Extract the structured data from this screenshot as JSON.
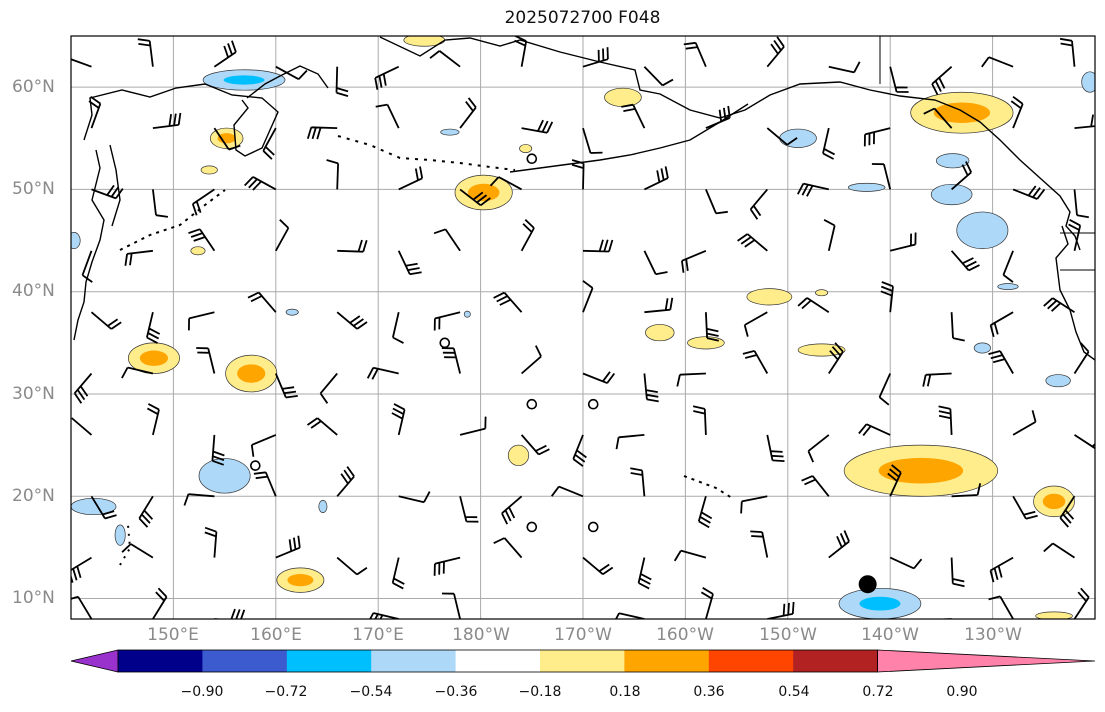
{
  "title": "2025072700 F048",
  "lat_labels": [
    "60°N",
    "50°N",
    "40°N",
    "30°N",
    "20°N",
    "10°N"
  ],
  "lon_labels": [
    "150°E",
    "160°E",
    "170°E",
    "180°W",
    "170°W",
    "160°W",
    "150°W",
    "140°W",
    "130°W"
  ],
  "colorbar": {
    "tick_labels": [
      "−0.90",
      "−0.72",
      "−0.54",
      "−0.36",
      "−0.18",
      "0.18",
      "0.36",
      "0.54",
      "0.72",
      "0.90"
    ],
    "colors": [
      "#9932cc",
      "#00008b",
      "#3b5bcf",
      "#00bfff",
      "#add8f8",
      "#ffffff",
      "#ffec8b",
      "#ffa500",
      "#ff4500",
      "#b22222",
      "#ff82ab"
    ]
  },
  "map": {
    "extent": {
      "lon_min": 140,
      "lon_max": 240,
      "lat_min": 8,
      "lat_max": 65
    },
    "gridlines": {
      "lons": [
        150,
        160,
        170,
        180,
        190,
        200,
        210,
        220,
        230
      ],
      "lats": [
        10,
        20,
        30,
        40,
        50,
        60
      ]
    },
    "positive_areas": [
      {
        "lon": 155.2,
        "lat": 55.0,
        "rx": 1.6,
        "ry": 1.0,
        "level": 0.36
      },
      {
        "lon": 153.5,
        "lat": 51.9,
        "rx": 0.8,
        "ry": 0.4,
        "level": 0.18
      },
      {
        "lon": 152.4,
        "lat": 44.0,
        "rx": 0.7,
        "ry": 0.4,
        "level": 0.18
      },
      {
        "lon": 174.5,
        "lat": 64.6,
        "rx": 2.0,
        "ry": 0.6,
        "level": 0.18
      },
      {
        "lon": 180.3,
        "lat": 49.7,
        "rx": 2.8,
        "ry": 1.7,
        "level": 0.36
      },
      {
        "lon": 184.4,
        "lat": 54.0,
        "rx": 0.6,
        "ry": 0.4,
        "level": 0.18
      },
      {
        "lon": 193.9,
        "lat": 59.0,
        "rx": 1.8,
        "ry": 0.9,
        "level": 0.18
      },
      {
        "lon": 227.0,
        "lat": 57.5,
        "rx": 5.0,
        "ry": 2.0,
        "level": 0.36
      },
      {
        "lon": 148.1,
        "lat": 33.5,
        "rx": 2.5,
        "ry": 1.5,
        "level": 0.36
      },
      {
        "lon": 157.6,
        "lat": 32.0,
        "rx": 2.5,
        "ry": 1.8,
        "level": 0.36
      },
      {
        "lon": 197.5,
        "lat": 36.0,
        "rx": 1.4,
        "ry": 0.8,
        "level": 0.18
      },
      {
        "lon": 202.0,
        "lat": 35.0,
        "rx": 1.8,
        "ry": 0.6,
        "level": 0.18
      },
      {
        "lon": 208.2,
        "lat": 39.5,
        "rx": 2.2,
        "ry": 0.8,
        "level": 0.18
      },
      {
        "lon": 213.3,
        "lat": 39.9,
        "rx": 0.6,
        "ry": 0.3,
        "level": 0.18
      },
      {
        "lon": 213.3,
        "lat": 34.3,
        "rx": 2.3,
        "ry": 0.6,
        "level": 0.18
      },
      {
        "lon": 183.7,
        "lat": 24.0,
        "rx": 1.0,
        "ry": 1.0,
        "level": 0.18
      },
      {
        "lon": 223.0,
        "lat": 22.5,
        "rx": 7.5,
        "ry": 2.5,
        "level": 0.36
      },
      {
        "lon": 236.0,
        "lat": 19.5,
        "rx": 2.0,
        "ry": 1.5,
        "level": 0.36
      },
      {
        "lon": 162.4,
        "lat": 11.8,
        "rx": 2.3,
        "ry": 1.2,
        "level": 0.36
      },
      {
        "lon": 236.0,
        "lat": 8.3,
        "rx": 1.8,
        "ry": 0.4,
        "level": 0.18
      }
    ],
    "negative_areas": [
      {
        "lon": 156.9,
        "lat": 60.7,
        "rx": 4.0,
        "ry": 1.0,
        "level": -0.36
      },
      {
        "lon": 177.0,
        "lat": 55.6,
        "rx": 0.9,
        "ry": 0.3,
        "level": -0.18
      },
      {
        "lon": 211.0,
        "lat": 55.0,
        "rx": 1.8,
        "ry": 0.9,
        "level": -0.18
      },
      {
        "lon": 217.7,
        "lat": 50.2,
        "rx": 1.8,
        "ry": 0.4,
        "level": -0.18
      },
      {
        "lon": 226.1,
        "lat": 52.8,
        "rx": 1.6,
        "ry": 0.7,
        "level": -0.18
      },
      {
        "lon": 226.0,
        "lat": 49.5,
        "rx": 2.0,
        "ry": 1.0,
        "level": -0.18
      },
      {
        "lon": 229.0,
        "lat": 46.0,
        "rx": 2.5,
        "ry": 1.8,
        "level": -0.18
      },
      {
        "lon": 239.5,
        "lat": 60.5,
        "rx": 0.8,
        "ry": 1.0,
        "level": -0.18
      },
      {
        "lon": 231.5,
        "lat": 40.5,
        "rx": 1.0,
        "ry": 0.3,
        "level": -0.18
      },
      {
        "lon": 229.0,
        "lat": 34.5,
        "rx": 0.8,
        "ry": 0.5,
        "level": -0.18
      },
      {
        "lon": 236.4,
        "lat": 31.3,
        "rx": 1.2,
        "ry": 0.6,
        "level": -0.18
      },
      {
        "lon": 140.3,
        "lat": 45.0,
        "rx": 0.6,
        "ry": 0.8,
        "level": -0.18
      },
      {
        "lon": 161.6,
        "lat": 38.0,
        "rx": 0.6,
        "ry": 0.3,
        "level": -0.18
      },
      {
        "lon": 178.7,
        "lat": 37.8,
        "rx": 0.3,
        "ry": 0.3,
        "level": -0.18
      },
      {
        "lon": 155.0,
        "lat": 22.0,
        "rx": 2.5,
        "ry": 1.7,
        "level": -0.18
      },
      {
        "lon": 142.2,
        "lat": 19.0,
        "rx": 2.2,
        "ry": 0.8,
        "level": -0.18
      },
      {
        "lon": 164.6,
        "lat": 19.0,
        "rx": 0.4,
        "ry": 0.6,
        "level": -0.18
      },
      {
        "lon": 144.8,
        "lat": 16.2,
        "rx": 0.5,
        "ry": 1.0,
        "level": -0.18
      },
      {
        "lon": 219.0,
        "lat": 9.5,
        "rx": 4.0,
        "ry": 1.5,
        "level": -0.36
      }
    ],
    "wind_barbs_note": "barb glyphs drawn by script",
    "calm_markers": [
      {
        "lon": 185.0,
        "lat": 53.0
      },
      {
        "lon": 176.5,
        "lat": 35.0
      },
      {
        "lon": 185.0,
        "lat": 29.0
      },
      {
        "lon": 191.0,
        "lat": 29.0
      },
      {
        "lon": 158.0,
        "lat": 23.0
      },
      {
        "lon": 185.0,
        "lat": 17.0
      },
      {
        "lon": 191.0,
        "lat": 17.0
      }
    ],
    "storm_marker": {
      "lon": 217.8,
      "lat": 11.4
    }
  }
}
